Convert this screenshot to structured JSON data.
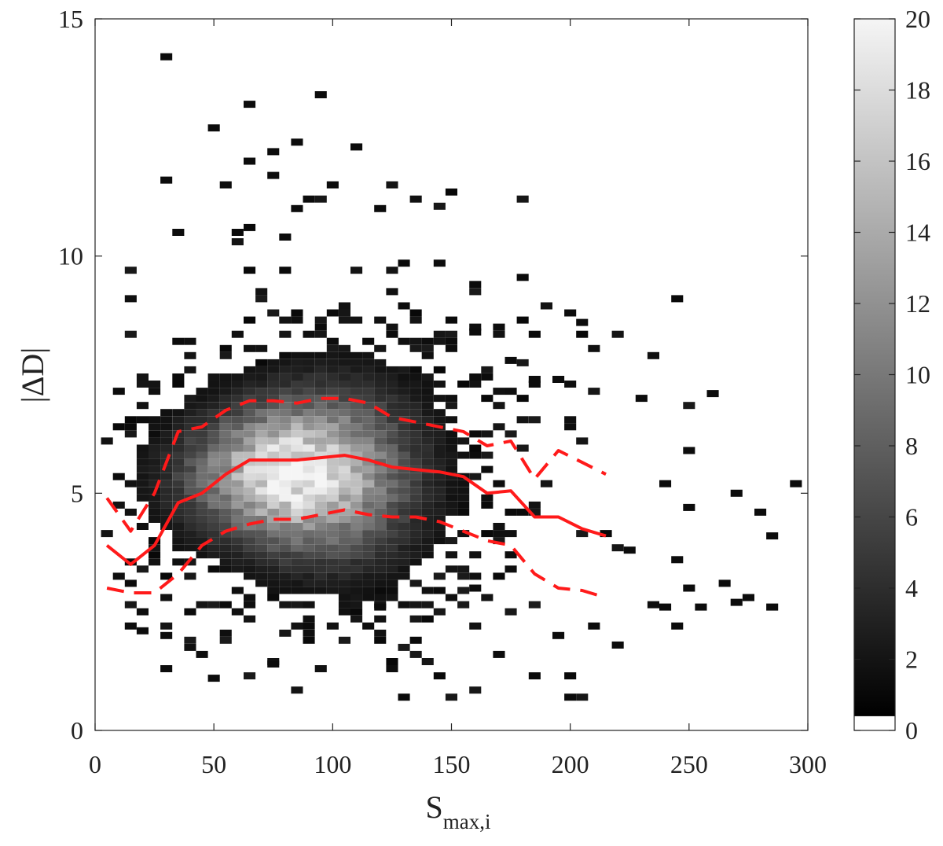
{
  "chart_data": {
    "type": "heatmap",
    "title": "",
    "xlabel_main": "S",
    "xlabel_sub": "max,i",
    "ylabel": "|ΔD|",
    "xlim": [
      0,
      300
    ],
    "ylim": [
      0,
      15
    ],
    "xticks": [
      "0",
      "50",
      "100",
      "150",
      "200",
      "250",
      "300"
    ],
    "yticks": [
      "0",
      "5",
      "10",
      "15"
    ],
    "bin_size": {
      "x": 5,
      "y": 0.15
    },
    "colorbar": {
      "range": [
        0,
        20
      ],
      "ticks": [
        "0",
        "2",
        "4",
        "6",
        "8",
        "10",
        "12",
        "14",
        "16",
        "18",
        "20"
      ],
      "colormap": "gray"
    },
    "density_model": {
      "core": {
        "x_center": 85,
        "y_center": 5.4,
        "x_spread": 30,
        "y_spread": 0.75,
        "peak_count": 20
      },
      "x_extent": [
        5,
        295
      ],
      "y_extent": [
        0.7,
        14.2
      ],
      "outlier_points": [
        [
          30,
          14.2
        ],
        [
          95,
          13.4
        ],
        [
          65,
          13.2
        ],
        [
          50,
          12.7
        ],
        [
          110,
          12.3
        ],
        [
          85,
          12.4
        ],
        [
          75,
          12.2
        ],
        [
          65,
          12.0
        ],
        [
          30,
          11.6
        ],
        [
          55,
          11.5
        ],
        [
          100,
          11.5
        ],
        [
          75,
          11.7
        ],
        [
          90,
          11.2
        ],
        [
          85,
          11.0
        ],
        [
          120,
          11.0
        ],
        [
          35,
          10.5
        ],
        [
          60,
          10.5
        ],
        [
          80,
          10.4
        ],
        [
          260,
          7.1
        ],
        [
          230,
          7.0
        ],
        [
          205,
          8.6
        ],
        [
          160,
          8.4
        ],
        [
          175,
          7.8
        ],
        [
          185,
          7.4
        ],
        [
          195,
          7.4
        ],
        [
          295,
          5.2
        ],
        [
          270,
          5.0
        ],
        [
          250,
          5.9
        ],
        [
          240,
          5.2
        ],
        [
          280,
          4.6
        ],
        [
          250,
          4.7
        ],
        [
          285,
          4.1
        ],
        [
          225,
          3.8
        ],
        [
          245,
          3.6
        ],
        [
          250,
          3.0
        ],
        [
          265,
          3.1
        ],
        [
          275,
          2.8
        ],
        [
          285,
          2.6
        ],
        [
          240,
          2.6
        ],
        [
          255,
          2.6
        ],
        [
          270,
          2.7
        ],
        [
          245,
          2.2
        ],
        [
          220,
          1.8
        ],
        [
          210,
          2.2
        ],
        [
          195,
          2.0
        ],
        [
          200,
          0.7
        ],
        [
          30,
          1.3
        ],
        [
          50,
          1.1
        ],
        [
          75,
          1.4
        ],
        [
          90,
          2.2
        ],
        [
          20,
          2.1
        ],
        [
          30,
          2.0
        ],
        [
          120,
          2.6
        ],
        [
          160,
          3.0
        ]
      ]
    },
    "series": [
      {
        "style": "solid",
        "color": "#ff1a1a",
        "x": [
          5,
          15,
          25,
          35,
          45,
          55,
          65,
          75,
          85,
          95,
          105,
          115,
          125,
          135,
          145,
          155,
          165,
          175,
          185,
          195,
          205,
          215
        ],
        "y": [
          3.9,
          3.5,
          3.9,
          4.8,
          5.0,
          5.4,
          5.7,
          5.7,
          5.7,
          5.75,
          5.8,
          5.7,
          5.55,
          5.5,
          5.45,
          5.35,
          5.0,
          5.05,
          4.5,
          4.5,
          4.25,
          4.1
        ]
      },
      {
        "style": "dashed",
        "color": "#ff1a1a",
        "x": [
          5,
          15,
          25,
          35,
          45,
          55,
          65,
          75,
          85,
          95,
          105,
          115,
          125,
          135,
          145,
          155,
          165,
          175,
          185,
          195,
          205,
          215
        ],
        "y": [
          4.9,
          4.2,
          5.0,
          6.3,
          6.4,
          6.75,
          6.95,
          6.95,
          6.9,
          7.0,
          7.0,
          6.9,
          6.6,
          6.5,
          6.4,
          6.3,
          6.0,
          6.1,
          5.3,
          5.9,
          5.65,
          5.4
        ]
      },
      {
        "style": "dashed",
        "color": "#ff1a1a",
        "x": [
          5,
          15,
          25,
          35,
          45,
          55,
          65,
          75,
          85,
          95,
          105,
          115,
          125,
          135,
          145,
          155,
          165,
          175,
          185,
          195,
          205,
          215
        ],
        "y": [
          3.0,
          2.9,
          2.9,
          3.3,
          3.9,
          4.2,
          4.35,
          4.45,
          4.45,
          4.55,
          4.65,
          4.55,
          4.5,
          4.5,
          4.4,
          4.2,
          4.0,
          3.9,
          3.3,
          3.0,
          2.95,
          2.8
        ]
      }
    ]
  }
}
